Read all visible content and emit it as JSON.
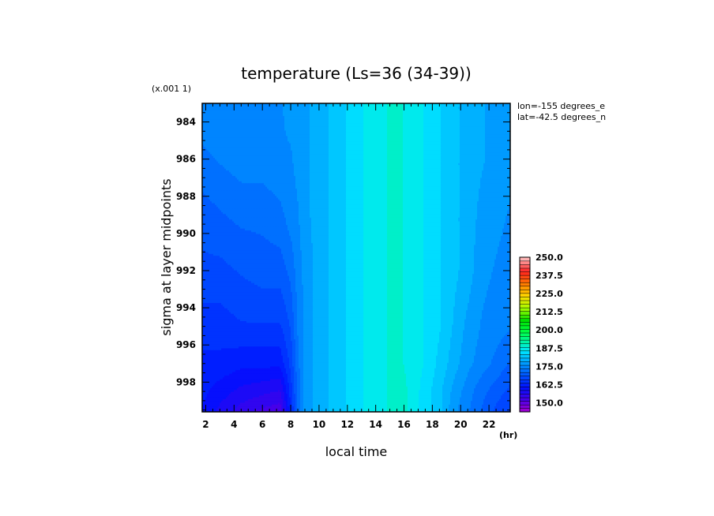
{
  "chart_data": {
    "type": "heatmap",
    "title": "temperature (Ls=36 (34-39))",
    "xlabel": "local time",
    "x_unit": "(hr)",
    "ylabel": "sigma at layer midpoints",
    "y_scale_note": "(x.001 1)",
    "annotations": [
      "lon=-155 degrees_e",
      "lat=-42.5 degrees_n"
    ],
    "xlim": [
      1.75,
      23.5
    ],
    "ylim": [
      983,
      999.6
    ],
    "y_inverted": true,
    "x_ticks": [
      2,
      4,
      6,
      8,
      10,
      12,
      14,
      16,
      18,
      20,
      22
    ],
    "x_tick_labels": [
      "2",
      "4",
      "6",
      "8",
      "10",
      "12",
      "14",
      "16",
      "18",
      "20",
      "22"
    ],
    "y_ticks": [
      984,
      986,
      988,
      990,
      992,
      994,
      996,
      998
    ],
    "y_tick_labels": [
      "984",
      "986",
      "988",
      "990",
      "992",
      "994",
      "996",
      "998"
    ],
    "x": [
      1.75,
      3,
      4.5,
      6,
      7.25,
      8,
      8.5,
      9,
      10,
      11,
      12,
      13,
      14,
      15,
      15.75,
      16.5,
      17.5,
      18.5,
      19.5,
      20.5,
      21.5,
      22.5,
      23.5
    ],
    "y": [
      983,
      986,
      989,
      992,
      995,
      997,
      998.5,
      999.6
    ],
    "z": [
      [
        176,
        176,
        176,
        176,
        176,
        177,
        177,
        178,
        180,
        182,
        184,
        186,
        188,
        189,
        189,
        188,
        186,
        184,
        182,
        180,
        179,
        178,
        177
      ],
      [
        173,
        174,
        175,
        175,
        176,
        176,
        177,
        178,
        180,
        182,
        184,
        186,
        188,
        189,
        189,
        188,
        186,
        184,
        182,
        180,
        179,
        178,
        177
      ],
      [
        170,
        171,
        172,
        172,
        173,
        175,
        176,
        178,
        180,
        182,
        184,
        186,
        188,
        189,
        189,
        188,
        186,
        184,
        182,
        180,
        178,
        177,
        176
      ],
      [
        168,
        168,
        169,
        170,
        170,
        172,
        175,
        177,
        180,
        182,
        184,
        186,
        188,
        189,
        189,
        188,
        186,
        184,
        182,
        180,
        177,
        176,
        175
      ],
      [
        165,
        165,
        166,
        166,
        166,
        169,
        174,
        177,
        180,
        182,
        184,
        186,
        188,
        189,
        189,
        188,
        186,
        184,
        181,
        178,
        176,
        175,
        174
      ],
      [
        163,
        163,
        162,
        162,
        162,
        167,
        173,
        177,
        180,
        182,
        184,
        186,
        188,
        189,
        189,
        188,
        186,
        183,
        180,
        177,
        175,
        173,
        171
      ],
      [
        162,
        160,
        158,
        157,
        156,
        165,
        172,
        177,
        180,
        182,
        184,
        186,
        188,
        189,
        190,
        188,
        185,
        182,
        178,
        175,
        172,
        170,
        168
      ],
      [
        161,
        158,
        155,
        153,
        152,
        163,
        172,
        177,
        180,
        182,
        184,
        186,
        188,
        189,
        190,
        188,
        185,
        182,
        177,
        174,
        171,
        168,
        166
      ]
    ],
    "colorbar": {
      "min": 143.75,
      "max": 250,
      "step": 2.5,
      "labels": [
        "250.0",
        "237.5",
        "225.0",
        "212.5",
        "200.0",
        "187.5",
        "175.0",
        "162.5",
        "150.0"
      ],
      "label_values": [
        250,
        237.5,
        225,
        212.5,
        200,
        187.5,
        175,
        162.5,
        150
      ]
    },
    "colormap": [
      [
        0,
        "#a800d0"
      ],
      [
        0.08,
        "#4800e8"
      ],
      [
        0.16,
        "#0010ff"
      ],
      [
        0.28,
        "#0078ff"
      ],
      [
        0.4,
        "#00e8ff"
      ],
      [
        0.52,
        "#00ff48"
      ],
      [
        0.6,
        "#00e000"
      ],
      [
        0.68,
        "#a8ff00"
      ],
      [
        0.76,
        "#ffd800"
      ],
      [
        0.84,
        "#ff7800"
      ],
      [
        0.92,
        "#ff2020"
      ],
      [
        1,
        "#ffb4b4"
      ]
    ]
  }
}
